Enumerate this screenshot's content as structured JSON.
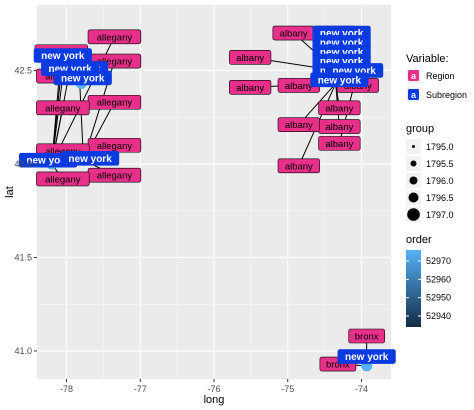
{
  "colors": {
    "panel_bg": "#EBEBEB",
    "grid_major": "#FFFFFF",
    "region_fill": "#E8308A",
    "subregion_fill": "#0A3BE0",
    "point_fill": "#56B1F7",
    "order_gradient": [
      "#132B43",
      "#56B1F7"
    ]
  },
  "chart_data": {
    "type": "scatter",
    "xlabel": "long",
    "ylabel": "lat",
    "xlim": [
      -78.4,
      -73.6
    ],
    "ylim": [
      40.85,
      42.85
    ],
    "x_ticks": [
      -78,
      -77,
      -76,
      -75,
      -74
    ],
    "x_tick_labels": [
      "-78",
      "-77",
      "-76",
      "-75",
      "-74"
    ],
    "y_ticks": [
      41.0,
      41.5,
      42.0,
      42.5
    ],
    "y_tick_labels": [
      "41.0",
      "41.5",
      "42.0",
      "42.5"
    ],
    "grid": true,
    "points": [
      {
        "long": -78.2,
        "lat": 42.0
      },
      {
        "long": -77.77,
        "lat": 42.02
      },
      {
        "long": -77.8,
        "lat": 42.43
      },
      {
        "long": -73.93,
        "lat": 40.92
      }
    ],
    "labels": [
      {
        "text": "allegany",
        "kind": "Region",
        "long": -77.35,
        "lat": 42.68,
        "to": [
          -78.2,
          42.0
        ]
      },
      {
        "text": "allegany",
        "kind": "Region",
        "long": -78.07,
        "lat": 42.6,
        "to": [
          -78.2,
          42.0
        ]
      },
      {
        "text": "allegany",
        "kind": "Region",
        "long": -77.35,
        "lat": 42.55,
        "to": [
          -77.77,
          42.02
        ]
      },
      {
        "text": "allegany",
        "kind": "Region",
        "long": -78.05,
        "lat": 42.47,
        "to": [
          -78.2,
          42.0
        ]
      },
      {
        "text": "allegany",
        "kind": "Region",
        "long": -77.35,
        "lat": 42.33,
        "to": [
          -77.77,
          42.02
        ]
      },
      {
        "text": "allegany",
        "kind": "Region",
        "long": -78.05,
        "lat": 42.3,
        "to": [
          -78.2,
          42.0
        ]
      },
      {
        "text": "allegany",
        "kind": "Region",
        "long": -77.35,
        "lat": 42.1,
        "to": [
          -77.77,
          42.02
        ]
      },
      {
        "text": "allegany",
        "kind": "Region",
        "long": -78.05,
        "lat": 42.07,
        "to": [
          -78.2,
          42.0
        ]
      },
      {
        "text": "allegany",
        "kind": "Region",
        "long": -77.35,
        "lat": 41.94,
        "to": [
          -77.77,
          42.02
        ]
      },
      {
        "text": "allegany",
        "kind": "Region",
        "long": -78.05,
        "lat": 41.92,
        "to": [
          -78.2,
          42.0
        ]
      },
      {
        "text": "new york",
        "kind": "Subregion",
        "long": -78.05,
        "lat": 42.58,
        "to": [
          -78.2,
          42.0
        ]
      },
      {
        "text": "new york",
        "kind": "Subregion",
        "long": -77.83,
        "lat": 42.51,
        "to": [
          -77.77,
          42.02
        ]
      },
      {
        "text": "new york",
        "kind": "Subregion",
        "long": -77.95,
        "lat": 42.51,
        "to": [
          -78.2,
          42.0
        ]
      },
      {
        "text": "new york",
        "kind": "Subregion",
        "long": -77.78,
        "lat": 42.46,
        "to": [
          -77.8,
          42.43
        ]
      },
      {
        "text": "new york",
        "kind": "Subregion",
        "long": -78.25,
        "lat": 42.02,
        "to": [
          -78.2,
          42.0
        ]
      },
      {
        "text": "new york",
        "kind": "Subregion",
        "long": -77.68,
        "lat": 42.03,
        "to": [
          -77.77,
          42.02
        ]
      },
      {
        "text": "albany",
        "kind": "Region",
        "long": -74.92,
        "lat": 42.7,
        "to": [
          -74.35,
          42.5
        ]
      },
      {
        "text": "albany",
        "kind": "Region",
        "long": -74.37,
        "lat": 42.7,
        "to": [
          -74.35,
          42.5
        ]
      },
      {
        "text": "albany",
        "kind": "Region",
        "long": -75.51,
        "lat": 42.57,
        "to": [
          -74.35,
          42.5
        ]
      },
      {
        "text": "albany",
        "kind": "Region",
        "long": -74.37,
        "lat": 42.57,
        "to": [
          -74.35,
          42.5
        ]
      },
      {
        "text": "albany",
        "kind": "Region",
        "long": -75.51,
        "lat": 42.41,
        "to": [
          -74.35,
          42.43
        ]
      },
      {
        "text": "albany",
        "kind": "Region",
        "long": -74.85,
        "lat": 42.42,
        "to": [
          -74.35,
          42.5
        ]
      },
      {
        "text": "albany",
        "kind": "Region",
        "long": -74.05,
        "lat": 42.42,
        "to": [
          -74.35,
          42.5
        ]
      },
      {
        "text": "albany",
        "kind": "Region",
        "long": -74.3,
        "lat": 42.3,
        "to": [
          -74.35,
          42.43
        ]
      },
      {
        "text": "albany",
        "kind": "Region",
        "long": -74.3,
        "lat": 42.2,
        "to": [
          -74.35,
          42.43
        ]
      },
      {
        "text": "albany",
        "kind": "Region",
        "long": -74.85,
        "lat": 42.21,
        "to": [
          -74.35,
          42.43
        ]
      },
      {
        "text": "albany",
        "kind": "Region",
        "long": -74.3,
        "lat": 42.11,
        "to": [
          -74.05,
          42.5
        ]
      },
      {
        "text": "albany",
        "kind": "Region",
        "long": -74.85,
        "lat": 41.99,
        "to": [
          -74.35,
          42.43
        ]
      },
      {
        "text": "new york",
        "kind": "Subregion",
        "long": -74.27,
        "lat": 42.7,
        "to": [
          -74.35,
          42.5
        ]
      },
      {
        "text": "new york",
        "kind": "Subregion",
        "long": -74.27,
        "lat": 42.65,
        "to": [
          -74.35,
          42.5
        ]
      },
      {
        "text": "new york",
        "kind": "Subregion",
        "long": -74.27,
        "lat": 42.6,
        "to": [
          -74.35,
          42.5
        ]
      },
      {
        "text": "new york",
        "kind": "Subregion",
        "long": -74.27,
        "lat": 42.55,
        "to": [
          -74.35,
          42.5
        ]
      },
      {
        "text": "new york",
        "kind": "Subregion",
        "long": -74.27,
        "lat": 42.5,
        "to": [
          -74.35,
          42.43
        ]
      },
      {
        "text": "new york",
        "kind": "Subregion",
        "long": -74.1,
        "lat": 42.5,
        "to": [
          -74.05,
          42.5
        ]
      },
      {
        "text": "new york",
        "kind": "Subregion",
        "long": -74.3,
        "lat": 42.45,
        "to": [
          -74.35,
          42.43
        ]
      },
      {
        "text": "bronx",
        "kind": "Region",
        "long": -73.93,
        "lat": 41.08,
        "to": [
          -73.93,
          40.92
        ]
      },
      {
        "text": "bronx",
        "kind": "Region",
        "long": -74.32,
        "lat": 40.93,
        "to": [
          -73.93,
          40.92
        ]
      },
      {
        "text": "new york",
        "kind": "Subregion",
        "long": -73.93,
        "lat": 40.97,
        "to": [
          -73.93,
          40.92
        ]
      }
    ]
  },
  "legend": {
    "variable": {
      "title": "Variable:",
      "key_glyph": "a",
      "items": [
        {
          "label": "Region",
          "color": "#E8308A"
        },
        {
          "label": "Subregion",
          "color": "#0A3BE0"
        }
      ]
    },
    "group": {
      "title": "group",
      "items": [
        "1795.0",
        "1795.5",
        "1796.0",
        "1796.5",
        "1797.0"
      ]
    },
    "order": {
      "title": "order",
      "ticks": [
        {
          "label": "52970",
          "value": 52970
        },
        {
          "label": "52960",
          "value": 52960
        },
        {
          "label": "52950",
          "value": 52950
        },
        {
          "label": "52940",
          "value": 52940
        }
      ],
      "range": [
        52934,
        52976
      ]
    }
  }
}
